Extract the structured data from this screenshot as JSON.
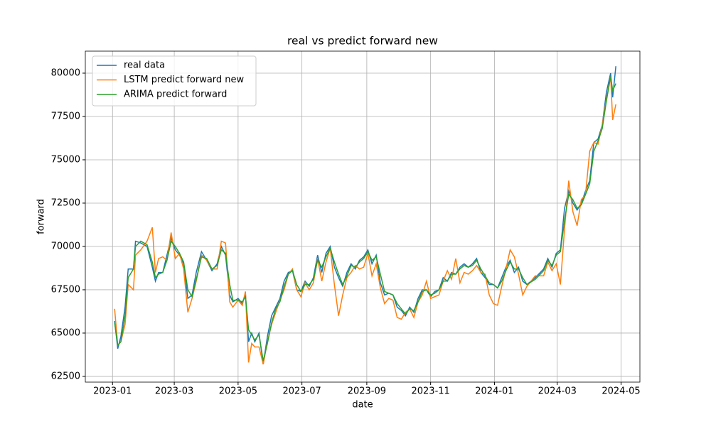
{
  "chart_data": {
    "type": "line",
    "title": "real vs predict forward new",
    "x_label": "date",
    "y_label": "forward",
    "x": [
      2,
      5,
      8,
      12,
      15,
      20,
      22,
      27,
      33,
      38,
      41,
      44,
      48,
      52,
      56,
      60,
      64,
      68,
      72,
      76,
      80,
      85,
      90,
      95,
      100,
      104,
      108,
      112,
      115,
      120,
      124,
      127,
      130,
      133,
      136,
      140,
      144,
      148,
      152,
      156,
      160,
      164,
      168,
      172,
      176,
      180,
      184,
      188,
      192,
      196,
      200,
      204,
      208,
      212,
      216,
      220,
      224,
      228,
      232,
      236,
      240,
      244,
      248,
      252,
      256,
      260,
      264,
      268,
      272,
      276,
      280,
      284,
      288,
      292,
      296,
      300,
      304,
      308,
      312,
      316,
      320,
      324,
      328,
      332,
      336,
      340,
      344,
      348,
      352,
      356,
      360,
      364,
      368,
      372,
      376,
      380,
      384,
      388,
      392,
      396,
      404,
      412,
      416,
      420,
      424,
      428,
      432,
      436,
      440,
      444,
      448,
      452,
      456,
      460,
      464,
      468,
      472,
      476,
      478,
      481
    ],
    "series": [
      {
        "name": "real data",
        "color": "#1f77b4",
        "values": [
          65700,
          64100,
          64800,
          66500,
          68700,
          68700,
          70300,
          70200,
          70000,
          68800,
          68000,
          68500,
          68500,
          69500,
          70500,
          69800,
          69500,
          69000,
          67000,
          67200,
          68500,
          69700,
          69200,
          68600,
          69000,
          70000,
          69500,
          67200,
          66800,
          67000,
          66700,
          67300,
          64500,
          65000,
          64500,
          65000,
          63200,
          64800,
          66000,
          66500,
          67000,
          68000,
          68500,
          68600,
          67500,
          67400,
          68000,
          67700,
          68200,
          69500,
          68500,
          69600,
          70000,
          68800,
          68200,
          67700,
          68500,
          69000,
          68700,
          69200,
          69400,
          69800,
          69000,
          69500,
          67900,
          67200,
          67300,
          67200,
          66500,
          66300,
          66000,
          66500,
          66200,
          67000,
          67500,
          67500,
          67100,
          67400,
          67500,
          68200,
          68000,
          68500,
          68400,
          68800,
          69000,
          68800,
          69000,
          69300,
          68500,
          68200,
          67800,
          67800,
          67600,
          68200,
          68800,
          69200,
          68500,
          68800,
          68000,
          67800,
          68200,
          68700,
          69300,
          68800,
          69600,
          69800,
          72200,
          73200,
          72500,
          72100,
          72500,
          73200,
          73800,
          76000,
          76200,
          77000,
          78900,
          80000,
          78600,
          80400
        ]
      },
      {
        "name": "LSTM predict forward new",
        "color": "#ff7f0e",
        "values": [
          66400,
          64300,
          64500,
          65500,
          67800,
          67500,
          69500,
          69800,
          70300,
          71100,
          68500,
          69300,
          69400,
          69200,
          70800,
          69300,
          69600,
          68700,
          66200,
          67000,
          68000,
          69500,
          69200,
          68700,
          68700,
          70300,
          70200,
          66800,
          66500,
          66900,
          66600,
          67400,
          63300,
          64400,
          64200,
          64200,
          63200,
          64500,
          65500,
          66200,
          66900,
          67500,
          68400,
          68700,
          67500,
          67100,
          67900,
          67500,
          67900,
          69300,
          68000,
          69100,
          69900,
          67800,
          66000,
          67200,
          68200,
          68500,
          68900,
          68700,
          68800,
          69600,
          68300,
          69000,
          67600,
          66700,
          67000,
          66900,
          65900,
          65800,
          66200,
          66400,
          65900,
          66800,
          67200,
          68000,
          67000,
          67100,
          67200,
          68000,
          68600,
          68100,
          69300,
          67900,
          68500,
          68400,
          68600,
          68900,
          68500,
          68400,
          67200,
          66700,
          66600,
          67700,
          68700,
          69800,
          69400,
          68400,
          67200,
          67700,
          68300,
          68300,
          69100,
          68600,
          69000,
          67800,
          71000,
          73800,
          72000,
          71200,
          72700,
          73000,
          75500,
          76000,
          75900,
          77000,
          78500,
          79800,
          77300,
          78200
        ]
      },
      {
        "name": "ARIMA predict forward",
        "color": "#2ca02c",
        "values": [
          65600,
          64300,
          64500,
          66000,
          68200,
          68700,
          70000,
          70300,
          70100,
          69100,
          68200,
          68400,
          68500,
          69200,
          70300,
          70000,
          69600,
          69100,
          67500,
          67100,
          68100,
          69400,
          69300,
          68700,
          68900,
          69800,
          69600,
          67800,
          66900,
          66900,
          66800,
          67100,
          65200,
          64900,
          64600,
          64900,
          63400,
          64400,
          65600,
          66400,
          66800,
          67700,
          68400,
          68600,
          67800,
          67400,
          67800,
          67800,
          68100,
          69200,
          68800,
          69400,
          69900,
          69100,
          68400,
          67800,
          68300,
          68900,
          68800,
          69100,
          69300,
          69700,
          69200,
          69400,
          68400,
          67400,
          67300,
          67200,
          66700,
          66400,
          66100,
          66400,
          66300,
          66800,
          67400,
          67500,
          67200,
          67300,
          67500,
          68000,
          68000,
          68400,
          68400,
          68700,
          68900,
          68800,
          68900,
          69200,
          68700,
          68300,
          67900,
          67800,
          67600,
          68000,
          68600,
          69100,
          68700,
          68700,
          68200,
          67800,
          68100,
          68600,
          69200,
          68900,
          69500,
          69700,
          71500,
          73000,
          72700,
          72200,
          72400,
          73000,
          73600,
          75500,
          76100,
          76800,
          78400,
          79800,
          79000,
          79400
        ]
      }
    ],
    "xlim": [
      -26,
      504
    ],
    "xticks": [
      {
        "value": 0,
        "label": "2023-01"
      },
      {
        "value": 59,
        "label": "2023-03"
      },
      {
        "value": 120,
        "label": "2023-05"
      },
      {
        "value": 181,
        "label": "2023-07"
      },
      {
        "value": 243,
        "label": "2023-09"
      },
      {
        "value": 304,
        "label": "2023-11"
      },
      {
        "value": 365,
        "label": "2024-01"
      },
      {
        "value": 425,
        "label": "2024-03"
      },
      {
        "value": 486,
        "label": "2024-05"
      }
    ],
    "ylim": [
      62170,
      81270
    ],
    "yticks": [
      62500,
      65000,
      67500,
      70000,
      72500,
      75000,
      77500,
      80000
    ],
    "grid": true,
    "legend": "upper left"
  }
}
